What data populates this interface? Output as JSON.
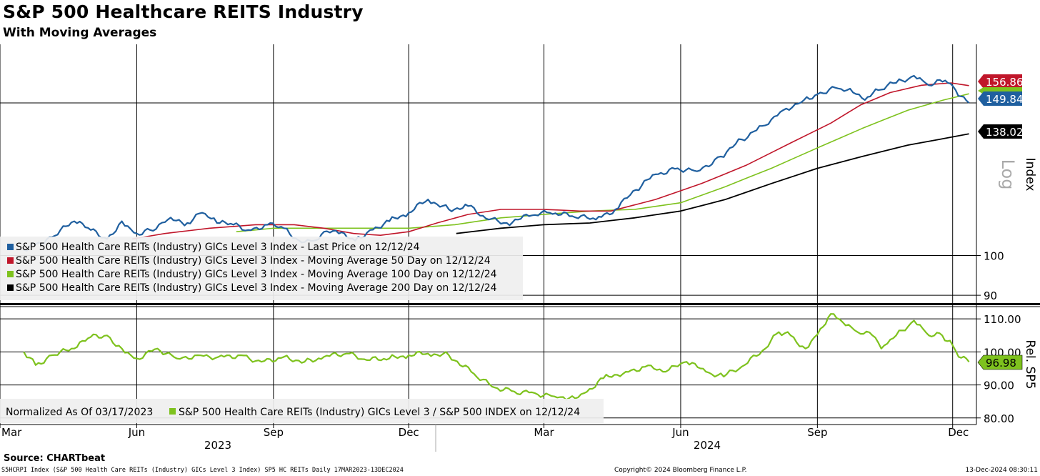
{
  "header": {
    "title": "S&P 500 Healthcare REITS Industry",
    "subtitle": "With Moving Averages"
  },
  "footer": {
    "source": "Source: CHARTbeat",
    "left": "S5HCRPI Index (S&P 500 Health Care REITs (Industry) GICs Level 3 Index) SP5 HC REITs  Daily 17MAR2023-13DEC2024",
    "center": "Copyright© 2024 Bloomberg Finance L.P.",
    "right": "13-Dec-2024 08:30:11"
  },
  "chart_data": [
    {
      "type": "line",
      "panel": "upper",
      "scale": "log",
      "ylim": [
        88,
        175
      ],
      "ylabel": "Index",
      "scale_label": "Log",
      "yticks": [
        90,
        100
      ],
      "legend": [
        "S&P 500 Health Care REITs (Industry) GICs Level 3 Index - Last Price on 12/12/24",
        "S&P 500 Health Care REITs (Industry) GICs Level 3 Index - Moving Average 50 Day on 12/12/24",
        "S&P 500 Health Care REITs (Industry) GICs Level 3 Index - Moving Average 100 Day on 12/12/24",
        "S&P 500 Health Care REITs (Industry) GICs Level 3 Index - Moving Average 200 Day on 12/12/24"
      ],
      "legend_placement": "bottom-left",
      "series": [
        {
          "name": "S&P 500 Health Care REITs (Industry) GICs Level 3 Index - Last Price on 12/12/24",
          "color": "#1f5f9f",
          "last_value": "149.84",
          "points": [
            [
              "2023-03-17",
              101.5
            ],
            [
              "2023-03-25",
              103
            ],
            [
              "2023-04-05",
              105
            ],
            [
              "2023-04-20",
              109.5
            ],
            [
              "2023-05-01",
              107
            ],
            [
              "2023-05-12",
              104.5
            ],
            [
              "2023-05-22",
              109.5
            ],
            [
              "2023-06-01",
              106
            ],
            [
              "2023-06-10",
              107
            ],
            [
              "2023-06-22",
              110
            ],
            [
              "2023-07-05",
              109
            ],
            [
              "2023-07-15",
              112
            ],
            [
              "2023-07-25",
              109
            ],
            [
              "2023-08-05",
              108.5
            ],
            [
              "2023-08-15",
              107
            ],
            [
              "2023-08-28",
              108.5
            ],
            [
              "2023-09-08",
              107.5
            ],
            [
              "2023-09-20",
              103.5
            ],
            [
              "2023-09-28",
              104
            ],
            [
              "2023-10-05",
              106.5
            ],
            [
              "2023-10-15",
              106
            ],
            [
              "2023-10-26",
              104
            ],
            [
              "2023-11-05",
              107
            ],
            [
              "2023-11-18",
              109.5
            ],
            [
              "2023-12-01",
              112
            ],
            [
              "2023-12-14",
              116
            ],
            [
              "2023-12-28",
              113
            ],
            [
              "2024-01-10",
              114
            ],
            [
              "2024-01-24",
              110
            ],
            [
              "2024-02-05",
              109
            ],
            [
              "2024-02-20",
              111
            ],
            [
              "2024-03-05",
              112
            ],
            [
              "2024-03-20",
              111
            ],
            [
              "2024-04-05",
              110
            ],
            [
              "2024-04-18",
              113
            ],
            [
              "2024-05-02",
              119
            ],
            [
              "2024-05-15",
              124
            ],
            [
              "2024-05-30",
              126
            ],
            [
              "2024-06-12",
              125
            ],
            [
              "2024-06-28",
              130
            ],
            [
              "2024-07-12",
              136
            ],
            [
              "2024-07-26",
              141
            ],
            [
              "2024-08-09",
              147
            ],
            [
              "2024-08-23",
              151
            ],
            [
              "2024-09-03",
              154
            ],
            [
              "2024-09-13",
              156
            ],
            [
              "2024-09-25",
              154
            ],
            [
              "2024-10-03",
              151
            ],
            [
              "2024-10-12",
              155
            ],
            [
              "2024-10-24",
              158
            ],
            [
              "2024-11-05",
              161
            ],
            [
              "2024-11-15",
              157
            ],
            [
              "2024-11-26",
              159
            ],
            [
              "2024-12-03",
              155
            ],
            [
              "2024-12-12",
              149.84
            ]
          ]
        },
        {
          "name": "S&P 500 Health Care REITs (Industry) GICs Level 3 Index - Moving Average 50 Day on 12/12/24",
          "color": "#c0162a",
          "last_value": "156.86",
          "points": [
            [
              "2023-05-29",
              104.5
            ],
            [
              "2023-06-20",
              106
            ],
            [
              "2023-07-20",
              107.5
            ],
            [
              "2023-08-20",
              108.5
            ],
            [
              "2023-09-15",
              108.5
            ],
            [
              "2023-10-05",
              107.5
            ],
            [
              "2023-10-25",
              106
            ],
            [
              "2023-11-12",
              105.5
            ],
            [
              "2023-12-01",
              106.5
            ],
            [
              "2023-12-20",
              109
            ],
            [
              "2024-01-10",
              111.5
            ],
            [
              "2024-02-01",
              113
            ],
            [
              "2024-03-01",
              113
            ],
            [
              "2024-03-25",
              112.5
            ],
            [
              "2024-04-15",
              112.5
            ],
            [
              "2024-05-15",
              116
            ],
            [
              "2024-06-15",
              121
            ],
            [
              "2024-07-15",
              127
            ],
            [
              "2024-08-15",
              135
            ],
            [
              "2024-09-10",
              142
            ],
            [
              "2024-09-30",
              149
            ],
            [
              "2024-10-20",
              154
            ],
            [
              "2024-11-10",
              157
            ],
            [
              "2024-11-30",
              158
            ],
            [
              "2024-12-12",
              156.86
            ]
          ]
        },
        {
          "name": "S&P 500 Health Care REITs (Industry) GICs Level 3 Index - Moving Average 100 Day on 12/12/24",
          "color": "#7ec21e",
          "last_value": "",
          "points": [
            [
              "2023-08-07",
              106.5
            ],
            [
              "2023-09-01",
              107.5
            ],
            [
              "2023-10-01",
              107.5
            ],
            [
              "2023-11-01",
              107.5
            ],
            [
              "2023-12-01",
              107.5
            ],
            [
              "2024-01-01",
              108.5
            ],
            [
              "2024-02-01",
              110.5
            ],
            [
              "2024-03-01",
              111.5
            ],
            [
              "2024-04-01",
              112.5
            ],
            [
              "2024-05-01",
              113
            ],
            [
              "2024-06-01",
              115
            ],
            [
              "2024-07-01",
              120
            ],
            [
              "2024-08-01",
              126
            ],
            [
              "2024-09-01",
              133
            ],
            [
              "2024-10-01",
              140
            ],
            [
              "2024-11-01",
              147
            ],
            [
              "2024-11-25",
              151
            ],
            [
              "2024-12-12",
              153.5
            ]
          ]
        },
        {
          "name": "S&P 500 Health Care REITs (Industry) GICs Level 3 Index - Moving Average 200 Day on 12/12/24",
          "color": "#000000",
          "last_value": "138.02",
          "points": [
            [
              "2024-01-02",
              106
            ],
            [
              "2024-02-01",
              107.5
            ],
            [
              "2024-03-01",
              108.5
            ],
            [
              "2024-04-01",
              109
            ],
            [
              "2024-05-01",
              110.5
            ],
            [
              "2024-06-01",
              112.5
            ],
            [
              "2024-07-01",
              116
            ],
            [
              "2024-08-01",
              121
            ],
            [
              "2024-09-01",
              126
            ],
            [
              "2024-10-01",
              130
            ],
            [
              "2024-11-01",
              134
            ],
            [
              "2024-12-12",
              138.02
            ]
          ]
        }
      ]
    },
    {
      "type": "line",
      "panel": "lower",
      "ylim": [
        78,
        113.5
      ],
      "ylabel": "Rel. SP5",
      "yticks": [
        "80.00",
        "90.00",
        "100.00",
        "110.00"
      ],
      "legend_placement": "bottom-left",
      "legend_prefix": "Normalized As Of 03/17/2023",
      "series": [
        {
          "name": "S&P 500 Health Care REITs (Industry) GICs Level 3 / S&P 500 INDEX on 12/12/24",
          "color": "#7ec21e",
          "last_value": "96.98",
          "points": [
            [
              "2023-03-17",
              100
            ],
            [
              "2023-03-25",
              96
            ],
            [
              "2023-04-05",
              99
            ],
            [
              "2023-04-20",
              101
            ],
            [
              "2023-05-01",
              104.5
            ],
            [
              "2023-05-12",
              105
            ],
            [
              "2023-05-22",
              101
            ],
            [
              "2023-06-01",
              98
            ],
            [
              "2023-06-15",
              101
            ],
            [
              "2023-06-28",
              98
            ],
            [
              "2023-07-12",
              99
            ],
            [
              "2023-07-26",
              98.5
            ],
            [
              "2023-08-10",
              99
            ],
            [
              "2023-08-24",
              97
            ],
            [
              "2023-09-08",
              98.5
            ],
            [
              "2023-09-22",
              97
            ],
            [
              "2023-10-05",
              98.5
            ],
            [
              "2023-10-20",
              99.5
            ],
            [
              "2023-11-03",
              97.5
            ],
            [
              "2023-11-18",
              98
            ],
            [
              "2023-12-01",
              99
            ],
            [
              "2023-12-14",
              99.5
            ],
            [
              "2023-12-28",
              99
            ],
            [
              "2024-01-12",
              94
            ],
            [
              "2024-01-26",
              89.5
            ],
            [
              "2024-02-10",
              88
            ],
            [
              "2024-02-24",
              87.5
            ],
            [
              "2024-03-08",
              86.5
            ],
            [
              "2024-03-18",
              86
            ],
            [
              "2024-03-28",
              87.5
            ],
            [
              "2024-04-10",
              92
            ],
            [
              "2024-04-25",
              94
            ],
            [
              "2024-05-08",
              95.5
            ],
            [
              "2024-05-22",
              94
            ],
            [
              "2024-06-05",
              97
            ],
            [
              "2024-06-18",
              94
            ],
            [
              "2024-06-30",
              92.5
            ],
            [
              "2024-07-14",
              96
            ],
            [
              "2024-07-28",
              101
            ],
            [
              "2024-08-06",
              106
            ],
            [
              "2024-08-14",
              105
            ],
            [
              "2024-08-24",
              101
            ],
            [
              "2024-09-03",
              107
            ],
            [
              "2024-09-10",
              111.5
            ],
            [
              "2024-09-18",
              109
            ],
            [
              "2024-09-28",
              106
            ],
            [
              "2024-10-08",
              105
            ],
            [
              "2024-10-14",
              101
            ],
            [
              "2024-10-24",
              105
            ],
            [
              "2024-11-05",
              109.5
            ],
            [
              "2024-11-15",
              105
            ],
            [
              "2024-11-24",
              105
            ],
            [
              "2024-12-01",
              102
            ],
            [
              "2024-12-05",
              98.5
            ],
            [
              "2024-12-12",
              96.98
            ]
          ]
        }
      ]
    }
  ],
  "x_axis": {
    "months": [
      "Mar",
      "Jun",
      "Sep",
      "Dec",
      "Mar",
      "Jun",
      "Sep",
      "Dec"
    ],
    "years": [
      "2023",
      "2024"
    ]
  }
}
